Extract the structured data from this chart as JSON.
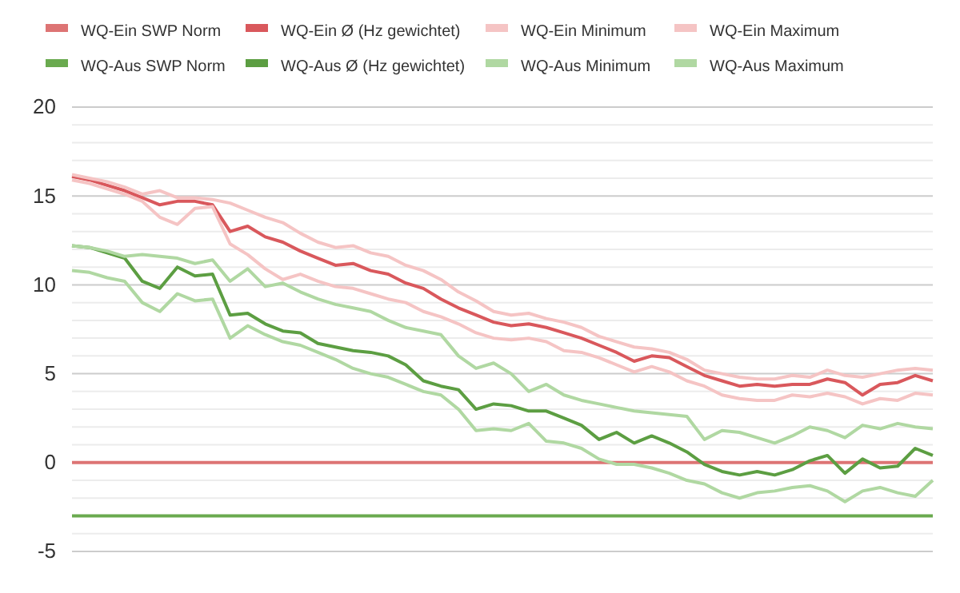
{
  "chart_data": {
    "type": "line",
    "categories": [
      null,
      null,
      null,
      null,
      null,
      null,
      null,
      null,
      null,
      null,
      null,
      null,
      null,
      null,
      null,
      null,
      null,
      null,
      null,
      null,
      null,
      null,
      null,
      null,
      null,
      null,
      null,
      null,
      null,
      null,
      null,
      null,
      null,
      null,
      null,
      null,
      null,
      null,
      null,
      null,
      null,
      null,
      null,
      null,
      null,
      null,
      null,
      null,
      null,
      null
    ],
    "series": [
      {
        "name": "WQ-Ein SWP Norm",
        "color": "#dd7474",
        "values": [
          0,
          0,
          0,
          0,
          0,
          0,
          0,
          0,
          0,
          0,
          0,
          0,
          0,
          0,
          0,
          0,
          0,
          0,
          0,
          0,
          0,
          0,
          0,
          0,
          0,
          0,
          0,
          0,
          0,
          0,
          0,
          0,
          0,
          0,
          0,
          0,
          0,
          0,
          0,
          0,
          0,
          0,
          0,
          0,
          0,
          0,
          0,
          0,
          0,
          0
        ]
      },
      {
        "name": "WQ-Ein Ø (Hz gewichtet)",
        "color": "#d9585c",
        "values": [
          16.1,
          15.9,
          15.6,
          15.3,
          14.9,
          14.5,
          14.7,
          14.7,
          14.5,
          13.0,
          13.3,
          12.7,
          12.4,
          11.9,
          11.5,
          11.1,
          11.2,
          10.8,
          10.6,
          10.1,
          9.8,
          9.2,
          8.7,
          8.3,
          7.9,
          7.7,
          7.8,
          7.6,
          7.3,
          7.0,
          6.6,
          6.2,
          5.7,
          6.0,
          5.9,
          5.4,
          4.9,
          4.6,
          4.3,
          4.4,
          4.3,
          4.4,
          4.4,
          4.7,
          4.5,
          3.8,
          4.4,
          4.5,
          4.9,
          4.6
        ]
      },
      {
        "name": "WQ-Ein Minimum",
        "color": "#f5c4c4",
        "values": [
          15.9,
          15.7,
          15.4,
          15.1,
          14.7,
          13.8,
          13.4,
          14.3,
          14.4,
          12.3,
          11.7,
          10.9,
          10.3,
          10.6,
          10.2,
          9.9,
          9.8,
          9.5,
          9.2,
          9.0,
          8.5,
          8.2,
          7.8,
          7.3,
          7.0,
          6.9,
          7.0,
          6.8,
          6.3,
          6.2,
          5.9,
          5.5,
          5.1,
          5.4,
          5.1,
          4.6,
          4.3,
          3.8,
          3.6,
          3.5,
          3.5,
          3.8,
          3.7,
          3.9,
          3.7,
          3.3,
          3.6,
          3.5,
          3.9,
          3.8
        ]
      },
      {
        "name": "WQ-Ein Maximum",
        "color": "#f5c4c4",
        "values": [
          16.2,
          16.0,
          15.8,
          15.5,
          15.1,
          15.3,
          14.9,
          14.9,
          14.8,
          14.6,
          14.2,
          13.8,
          13.5,
          12.9,
          12.4,
          12.1,
          12.2,
          11.8,
          11.6,
          11.1,
          10.8,
          10.3,
          9.6,
          9.1,
          8.5,
          8.3,
          8.4,
          8.1,
          7.9,
          7.6,
          7.1,
          6.8,
          6.5,
          6.4,
          6.2,
          5.8,
          5.2,
          5.0,
          4.8,
          4.7,
          4.7,
          4.9,
          4.8,
          5.2,
          4.9,
          4.8,
          5.0,
          5.2,
          5.3,
          5.2
        ]
      },
      {
        "name": "WQ-Aus SWP Norm",
        "color": "#6aaa4f",
        "values": [
          -3,
          -3,
          -3,
          -3,
          -3,
          -3,
          -3,
          -3,
          -3,
          -3,
          -3,
          -3,
          -3,
          -3,
          -3,
          -3,
          -3,
          -3,
          -3,
          -3,
          -3,
          -3,
          -3,
          -3,
          -3,
          -3,
          -3,
          -3,
          -3,
          -3,
          -3,
          -3,
          -3,
          -3,
          -3,
          -3,
          -3,
          -3,
          -3,
          -3,
          -3,
          -3,
          -3,
          -3,
          -3,
          -3,
          -3,
          -3,
          -3,
          -3
        ]
      },
      {
        "name": "WQ-Aus Ø (Hz gewichtet)",
        "color": "#5c9e42",
        "values": [
          12.2,
          12.1,
          11.8,
          11.5,
          10.2,
          9.8,
          11.0,
          10.5,
          10.6,
          8.3,
          8.4,
          7.8,
          7.4,
          7.3,
          6.7,
          6.5,
          6.3,
          6.2,
          6.0,
          5.5,
          4.6,
          4.3,
          4.1,
          3.0,
          3.3,
          3.2,
          2.9,
          2.9,
          2.5,
          2.1,
          1.3,
          1.7,
          1.1,
          1.5,
          1.1,
          0.6,
          -0.1,
          -0.5,
          -0.7,
          -0.5,
          -0.7,
          -0.4,
          0.1,
          0.4,
          -0.6,
          0.2,
          -0.3,
          -0.2,
          0.8,
          0.4
        ]
      },
      {
        "name": "WQ-Aus Minimum",
        "color": "#b0d8a2",
        "values": [
          10.8,
          10.7,
          10.4,
          10.2,
          9.0,
          8.5,
          9.5,
          9.1,
          9.2,
          7.0,
          7.7,
          7.2,
          6.8,
          6.6,
          6.2,
          5.8,
          5.3,
          5.0,
          4.8,
          4.4,
          4.0,
          3.8,
          3.0,
          1.8,
          1.9,
          1.8,
          2.2,
          1.2,
          1.1,
          0.8,
          0.2,
          -0.1,
          -0.1,
          -0.3,
          -0.6,
          -1.0,
          -1.2,
          -1.7,
          -2.0,
          -1.7,
          -1.6,
          -1.4,
          -1.3,
          -1.6,
          -2.2,
          -1.6,
          -1.4,
          -1.7,
          -1.9,
          -1.0
        ]
      },
      {
        "name": "WQ-Aus Maximum",
        "color": "#b0d8a2",
        "values": [
          12.2,
          12.1,
          11.9,
          11.6,
          11.7,
          11.6,
          11.5,
          11.2,
          11.4,
          10.2,
          10.9,
          9.9,
          10.1,
          9.6,
          9.2,
          8.9,
          8.7,
          8.5,
          8.0,
          7.6,
          7.4,
          7.2,
          6.0,
          5.3,
          5.6,
          5.0,
          4.0,
          4.4,
          3.8,
          3.5,
          3.3,
          3.1,
          2.9,
          2.8,
          2.7,
          2.6,
          1.3,
          1.8,
          1.7,
          1.4,
          1.1,
          1.5,
          2.0,
          1.8,
          1.4,
          2.1,
          1.9,
          2.2,
          2.0,
          1.9
        ]
      }
    ],
    "ylim": [
      -5,
      20
    ],
    "yticks": [
      -5,
      {
        "value": -4,
        "label": null
      },
      {
        "value": -2,
        "label": null
      },
      {
        "value": -1,
        "label": null
      },
      0,
      {
        "value": 1,
        "label": null
      },
      {
        "value": 2,
        "label": null
      },
      {
        "value": 3,
        "label": null
      },
      {
        "value": 4,
        "label": null
      },
      5,
      {
        "value": 6,
        "label": null
      },
      {
        "value": 7,
        "label": null
      },
      {
        "value": 8,
        "label": null
      },
      {
        "value": 9,
        "label": null
      },
      10,
      {
        "value": 11,
        "label": null
      },
      {
        "value": 12,
        "label": null
      },
      {
        "value": 13,
        "label": null
      },
      {
        "value": 14,
        "label": null
      },
      15,
      {
        "value": 16,
        "label": null
      },
      {
        "value": 17,
        "label": null
      },
      {
        "value": 18,
        "label": null
      },
      {
        "value": 19,
        "label": null
      },
      20
    ],
    "grid": "y",
    "legend": "top",
    "marker": "none",
    "line_style": "solid"
  }
}
